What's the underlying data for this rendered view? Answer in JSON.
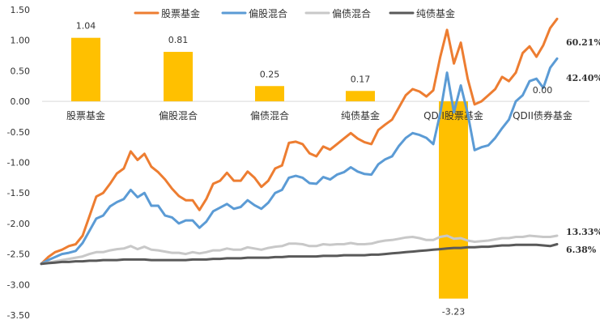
{
  "chart_data": {
    "type": "bar+line",
    "ylim": [
      -3.5,
      1.5
    ],
    "yticks": [
      "1.50",
      "1.00",
      "0.50",
      "0.00",
      "-0.50",
      "-1.00",
      "-1.50",
      "-2.00",
      "-2.50",
      "-3.00",
      "-3.50"
    ],
    "bars": {
      "color": "#FFC000",
      "categories": [
        "股票基金",
        "偏股混合",
        "偏债混合",
        "纯债基金",
        "QDII股票基金",
        "QDII债券基金"
      ],
      "values": [
        1.04,
        0.81,
        0.25,
        0.17,
        -3.23,
        0.0
      ],
      "value_labels": [
        "1.04",
        "0.81",
        "0.25",
        "0.17",
        "-3.23",
        "0.00"
      ]
    },
    "series": [
      {
        "name": "股票基金",
        "color": "#ED7D31",
        "end_label": "60.21%",
        "values": [
          -2.66,
          -2.55,
          -2.47,
          -2.43,
          -2.37,
          -2.34,
          -2.2,
          -1.88,
          -1.56,
          -1.5,
          -1.35,
          -1.18,
          -1.1,
          -0.82,
          -0.96,
          -0.86,
          -1.07,
          -1.16,
          -1.28,
          -1.43,
          -1.55,
          -1.62,
          -1.62,
          -1.78,
          -1.6,
          -1.35,
          -1.3,
          -1.17,
          -1.3,
          -1.3,
          -1.15,
          -1.25,
          -1.4,
          -1.3,
          -1.1,
          -1.05,
          -0.68,
          -0.66,
          -0.7,
          -0.85,
          -0.9,
          -0.74,
          -0.79,
          -0.7,
          -0.61,
          -0.52,
          -0.61,
          -0.67,
          -0.7,
          -0.47,
          -0.38,
          -0.3,
          -0.1,
          0.1,
          0.2,
          0.16,
          0.08,
          0.18,
          0.72,
          1.17,
          0.62,
          0.96,
          0.37,
          -0.05,
          0.0,
          0.1,
          0.2,
          0.4,
          0.33,
          0.47,
          0.79,
          0.9,
          0.73,
          0.92,
          1.2,
          1.35
        ]
      },
      {
        "name": "偏股混合",
        "color": "#5B9BD5",
        "end_label": "42.40%",
        "values": [
          -2.66,
          -2.6,
          -2.55,
          -2.5,
          -2.48,
          -2.45,
          -2.32,
          -2.12,
          -1.92,
          -1.87,
          -1.72,
          -1.65,
          -1.6,
          -1.45,
          -1.57,
          -1.5,
          -1.71,
          -1.71,
          -1.87,
          -1.9,
          -2.0,
          -1.95,
          -1.95,
          -2.07,
          -1.97,
          -1.8,
          -1.74,
          -1.68,
          -1.76,
          -1.73,
          -1.62,
          -1.7,
          -1.76,
          -1.66,
          -1.5,
          -1.45,
          -1.25,
          -1.22,
          -1.25,
          -1.34,
          -1.35,
          -1.24,
          -1.28,
          -1.2,
          -1.16,
          -1.08,
          -1.15,
          -1.19,
          -1.2,
          -1.03,
          -0.95,
          -0.9,
          -0.73,
          -0.6,
          -0.52,
          -0.55,
          -0.6,
          -0.7,
          -0.2,
          0.47,
          -0.18,
          0.26,
          -0.2,
          -0.8,
          -0.75,
          -0.72,
          -0.6,
          -0.44,
          -0.3,
          0.0,
          0.1,
          0.33,
          0.37,
          0.22,
          0.55,
          0.7
        ]
      },
      {
        "name": "偏债混合",
        "color": "#C8C8C8",
        "end_label": "13.33%",
        "values": [
          -2.66,
          -2.64,
          -2.62,
          -2.6,
          -2.58,
          -2.56,
          -2.54,
          -2.5,
          -2.47,
          -2.47,
          -2.44,
          -2.42,
          -2.41,
          -2.37,
          -2.42,
          -2.38,
          -2.43,
          -2.44,
          -2.46,
          -2.48,
          -2.48,
          -2.5,
          -2.47,
          -2.49,
          -2.47,
          -2.44,
          -2.44,
          -2.41,
          -2.43,
          -2.43,
          -2.39,
          -2.41,
          -2.43,
          -2.4,
          -2.38,
          -2.37,
          -2.33,
          -2.33,
          -2.34,
          -2.37,
          -2.37,
          -2.34,
          -2.35,
          -2.34,
          -2.34,
          -2.32,
          -2.34,
          -2.34,
          -2.33,
          -2.3,
          -2.28,
          -2.27,
          -2.25,
          -2.23,
          -2.22,
          -2.24,
          -2.27,
          -2.27,
          -2.22,
          -2.2,
          -2.25,
          -2.24,
          -2.28,
          -2.3,
          -2.29,
          -2.28,
          -2.26,
          -2.24,
          -2.24,
          -2.22,
          -2.22,
          -2.2,
          -2.21,
          -2.22,
          -2.22,
          -2.2
        ]
      },
      {
        "name": "纯债基金",
        "color": "#595959",
        "end_label": "6.38%",
        "values": [
          -2.66,
          -2.65,
          -2.64,
          -2.63,
          -2.63,
          -2.62,
          -2.62,
          -2.61,
          -2.61,
          -2.6,
          -2.6,
          -2.6,
          -2.59,
          -2.59,
          -2.59,
          -2.59,
          -2.6,
          -2.6,
          -2.6,
          -2.6,
          -2.6,
          -2.6,
          -2.59,
          -2.59,
          -2.59,
          -2.58,
          -2.58,
          -2.57,
          -2.57,
          -2.57,
          -2.56,
          -2.56,
          -2.56,
          -2.56,
          -2.55,
          -2.55,
          -2.54,
          -2.54,
          -2.54,
          -2.54,
          -2.54,
          -2.53,
          -2.53,
          -2.53,
          -2.52,
          -2.52,
          -2.52,
          -2.52,
          -2.51,
          -2.51,
          -2.5,
          -2.49,
          -2.48,
          -2.47,
          -2.46,
          -2.45,
          -2.44,
          -2.43,
          -2.42,
          -2.41,
          -2.4,
          -2.4,
          -2.39,
          -2.39,
          -2.38,
          -2.38,
          -2.37,
          -2.36,
          -2.36,
          -2.35,
          -2.35,
          -2.35,
          -2.35,
          -2.36,
          -2.37,
          -2.34
        ]
      }
    ],
    "legend": "top"
  }
}
